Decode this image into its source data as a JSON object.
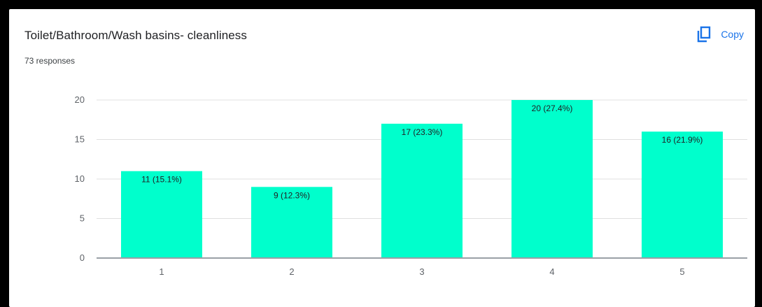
{
  "header": {
    "title": "Toilet/Bathroom/Wash basins- cleanliness",
    "responses": "73 responses",
    "copy_label": "Copy"
  },
  "colors": {
    "bar": "#00ffcc",
    "gridline": "#e0e0e0",
    "axis": "#9aa0a6",
    "accent": "#1a73e8"
  },
  "icons": {
    "copy": "copy-icon"
  },
  "chart_data": {
    "type": "bar",
    "title": "Toilet/Bathroom/Wash basins- cleanliness",
    "subtitle": "73 responses",
    "categories": [
      "1",
      "2",
      "3",
      "4",
      "5"
    ],
    "values": [
      11,
      9,
      17,
      20,
      16
    ],
    "data_labels": [
      "11 (15.1%)",
      "9 (12.3%)",
      "17 (23.3%)",
      "20 (27.4%)",
      "16 (21.9%)"
    ],
    "ylim": [
      0,
      20
    ],
    "yticks": [
      0,
      5,
      10,
      15,
      20
    ],
    "grid": true,
    "legend": "none"
  }
}
